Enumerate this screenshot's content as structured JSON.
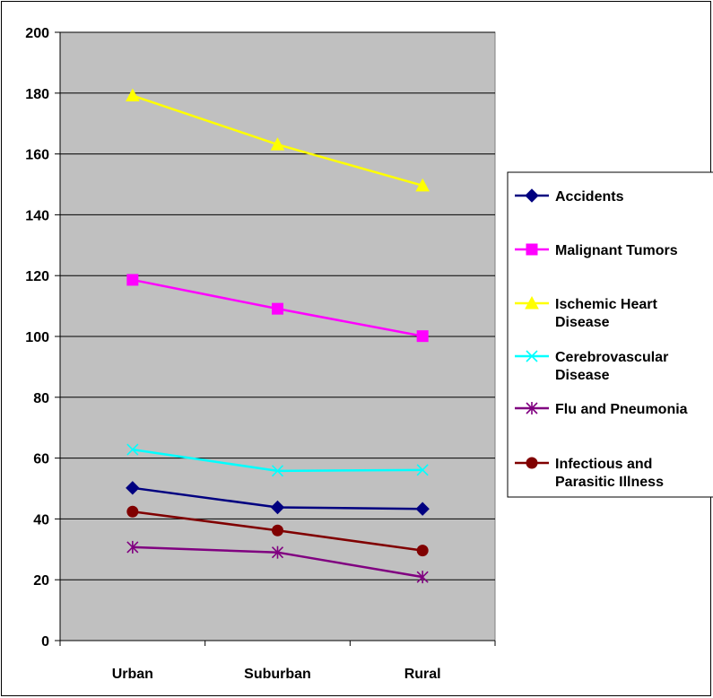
{
  "chart_data": {
    "type": "line",
    "title": "",
    "xlabel": "",
    "ylabel": "",
    "categories": [
      "Urban",
      "Suburban",
      "Rural"
    ],
    "ylim": [
      0,
      200
    ],
    "ytick_step": 20,
    "grid": true,
    "plot_background": "#C0C0C0",
    "legend_position": "right",
    "series": [
      {
        "name": "Accidents",
        "color": "#000080",
        "marker": "diamond",
        "values": [
          50.2,
          43.8,
          43.3
        ]
      },
      {
        "name": "Malignant Tumors",
        "color": "#FF00FF",
        "marker": "square",
        "values": [
          118.6,
          109.1,
          100.1
        ]
      },
      {
        "name": "Ischemic Heart Disease",
        "color": "#FFFF00",
        "marker": "triangle",
        "values": [
          179.2,
          163.1,
          149.6
        ]
      },
      {
        "name": "Cerebrovascular Disease",
        "color": "#00FFFF",
        "marker": "x",
        "values": [
          62.8,
          55.8,
          56.1
        ]
      },
      {
        "name": "Flu and Pneumonia",
        "color": "#800080",
        "marker": "star",
        "values": [
          30.7,
          29.0,
          20.9
        ]
      },
      {
        "name": "Infectious and Parasitic Illness",
        "color": "#800000",
        "marker": "circle",
        "values": [
          42.4,
          36.2,
          29.6
        ]
      }
    ]
  }
}
